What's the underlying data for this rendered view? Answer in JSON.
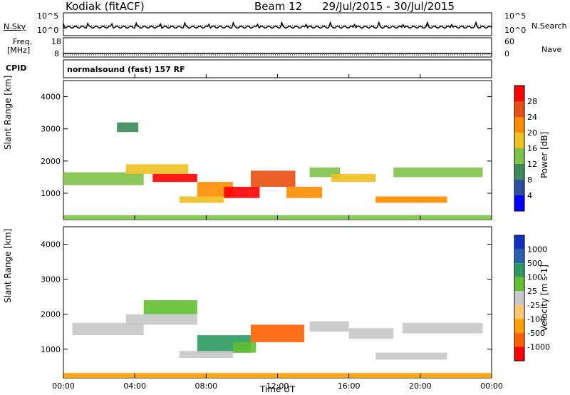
{
  "header": {
    "station": "Kodiak (fitACF)",
    "beam": "Beam 12",
    "dates": "29/Jul/2015 - 30/Jul/2015"
  },
  "noise_panel": {
    "left_label": "N.Sky",
    "right_label": "N.Search",
    "left_ticks": [
      "10^5",
      "10^0"
    ],
    "right_ticks": [
      "10^5",
      "10^0"
    ]
  },
  "freq_panel": {
    "left_label_1": "Freq.",
    "left_label_2": "[MHz]",
    "right_label": "Nave",
    "left_ticks": [
      "18",
      "8"
    ],
    "right_ticks": [
      "60",
      "0"
    ]
  },
  "cpid_panel": {
    "label": "CPID",
    "text": "normalsound (fast) 157 RF"
  },
  "colors": {
    "power": [
      "#0000ff",
      "#2a4fa0",
      "#3c8a5a",
      "#7fc24a",
      "#f0c020",
      "#ff8c00",
      "#e85010",
      "#ff0000"
    ],
    "velocity": [
      "#ff0000",
      "#ff6000",
      "#ffa000",
      "#ffc870",
      "#c8c8c8",
      "#60c030",
      "#2a9a60",
      "#2a60b0",
      "#1030c0"
    ]
  },
  "chart_data": [
    {
      "type": "heatmap",
      "panel": "power",
      "ylabel": "Slant Range [km]",
      "ylim": [
        180,
        4500
      ],
      "yticks": [
        1000,
        2000,
        3000,
        4000
      ],
      "xlim": [
        0,
        24
      ],
      "colorbar": {
        "label": "Power [dB]",
        "ticks": [
          "28",
          "24",
          "20",
          "16",
          "12",
          "8",
          "4"
        ],
        "range": [
          0,
          32
        ]
      },
      "bands": [
        {
          "t0": 0.0,
          "t1": 4.5,
          "r0": 1250,
          "r1": 1650,
          "level": 12
        },
        {
          "t0": 3.5,
          "t1": 7.0,
          "r0": 1600,
          "r1": 1900,
          "level": 16
        },
        {
          "t0": 5.0,
          "t1": 7.5,
          "r0": 1350,
          "r1": 1600,
          "level": 28
        },
        {
          "t0": 7.5,
          "t1": 9.5,
          "r0": 900,
          "r1": 1350,
          "level": 20
        },
        {
          "t0": 9.0,
          "t1": 11.0,
          "r0": 850,
          "r1": 1200,
          "level": 28
        },
        {
          "t0": 10.5,
          "t1": 13.0,
          "r0": 1200,
          "r1": 1700,
          "level": 24
        },
        {
          "t0": 12.5,
          "t1": 14.5,
          "r0": 850,
          "r1": 1200,
          "level": 20
        },
        {
          "t0": 6.5,
          "t1": 9.0,
          "r0": 700,
          "r1": 900,
          "level": 16
        },
        {
          "t0": 13.8,
          "t1": 15.5,
          "r0": 1500,
          "r1": 1800,
          "level": 12
        },
        {
          "t0": 15.0,
          "t1": 17.5,
          "r0": 1350,
          "r1": 1600,
          "level": 16
        },
        {
          "t0": 17.5,
          "t1": 21.5,
          "r0": 700,
          "r1": 900,
          "level": 20
        },
        {
          "t0": 18.5,
          "t1": 23.5,
          "r0": 1500,
          "r1": 1800,
          "level": 12
        },
        {
          "t0": 3.0,
          "t1": 4.2,
          "r0": 2900,
          "r1": 3200,
          "level": 8
        },
        {
          "t0": 0.0,
          "t1": 24.0,
          "r0": 180,
          "r1": 320,
          "level": 12
        }
      ]
    },
    {
      "type": "heatmap",
      "panel": "velocity",
      "ylabel": "Slant Range [km]",
      "xlabel": "Time UT",
      "ylim": [
        180,
        4500
      ],
      "yticks": [
        1000,
        2000,
        3000,
        4000
      ],
      "xlim": [
        0,
        24
      ],
      "xticks": [
        "00:00",
        "04:00",
        "08:00",
        "12:00",
        "16:00",
        "20:00",
        "00:00"
      ],
      "colorbar": {
        "label": "Velocity [m s-1]",
        "ticks": [
          "1000",
          "500",
          "100",
          "25",
          "-25",
          "-100",
          "-500",
          "-1000"
        ]
      },
      "bands": [
        {
          "t0": 0.5,
          "t1": 4.5,
          "r0": 1400,
          "r1": 1750,
          "cls": 4
        },
        {
          "t0": 3.5,
          "t1": 7.5,
          "r0": 1700,
          "r1": 2000,
          "cls": 4
        },
        {
          "t0": 7.5,
          "t1": 10.5,
          "r0": 900,
          "r1": 1400,
          "cls": 6
        },
        {
          "t0": 9.5,
          "t1": 10.8,
          "r0": 900,
          "r1": 1200,
          "cls": 5
        },
        {
          "t0": 10.5,
          "t1": 13.5,
          "r0": 1200,
          "r1": 1700,
          "cls": 1
        },
        {
          "t0": 4.5,
          "t1": 7.5,
          "r0": 2000,
          "r1": 2400,
          "cls": 5
        },
        {
          "t0": 6.5,
          "t1": 9.5,
          "r0": 750,
          "r1": 950,
          "cls": 4
        },
        {
          "t0": 13.8,
          "t1": 16.0,
          "r0": 1500,
          "r1": 1800,
          "cls": 4
        },
        {
          "t0": 16.0,
          "t1": 18.5,
          "r0": 1300,
          "r1": 1600,
          "cls": 4
        },
        {
          "t0": 17.5,
          "t1": 21.5,
          "r0": 700,
          "r1": 900,
          "cls": 4
        },
        {
          "t0": 19.0,
          "t1": 23.5,
          "r0": 1450,
          "r1": 1750,
          "cls": 4
        },
        {
          "t0": 0.0,
          "t1": 24.0,
          "r0": 180,
          "r1": 320,
          "cls": 2
        }
      ]
    }
  ]
}
